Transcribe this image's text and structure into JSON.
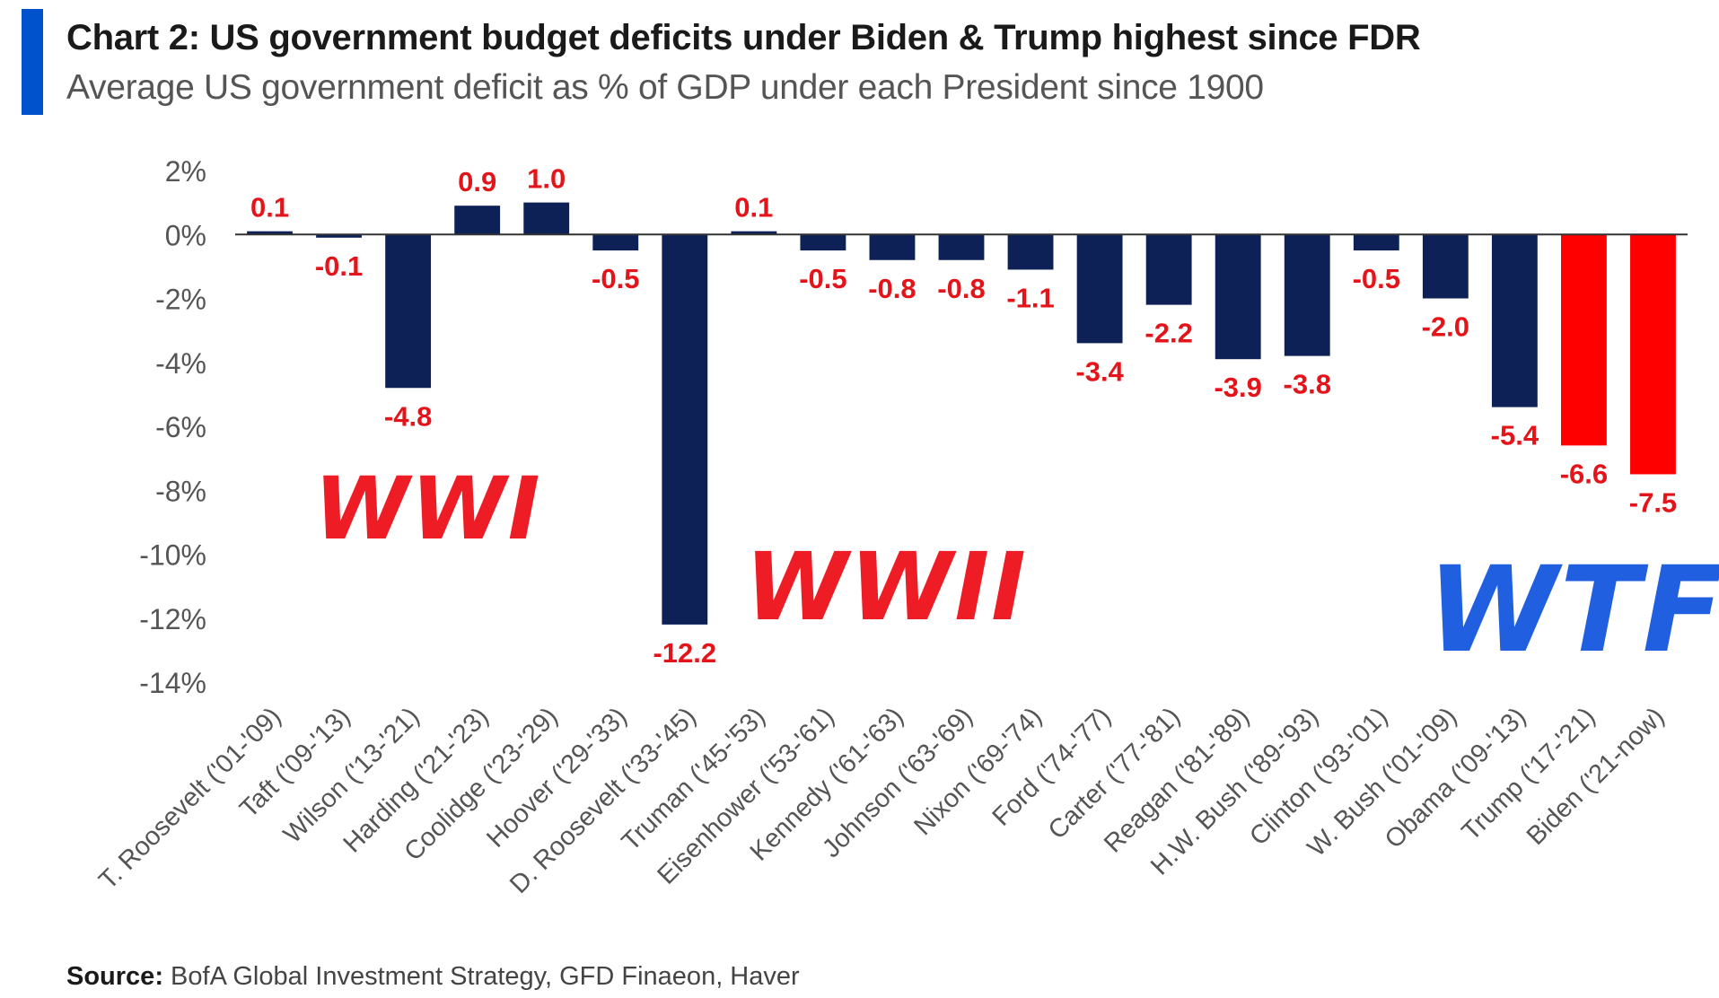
{
  "header": {
    "title": "Chart 2: US government budget deficits under Biden & Trump highest since FDR",
    "subtitle": "Average US government deficit as % of GDP under each President since 1900"
  },
  "source": {
    "label": "Source:",
    "text": "BofA Global Investment Strategy, GFD Finaeon, Haver"
  },
  "colors": {
    "accent": "#0052cc",
    "bar_default": "#0d2157",
    "bar_highlight": "#ff0000",
    "value_label": "#e3151a",
    "annotation_red": "#ee1c25",
    "annotation_blue": "#1f5fe0",
    "axis_text": "#555555"
  },
  "chart_data": {
    "type": "bar",
    "title": "Chart 2: US government budget deficits under Biden & Trump highest since FDR",
    "subtitle": "Average US government deficit as % of GDP under each President since 1900",
    "ylabel": "",
    "xlabel": "",
    "ylim": [
      -14,
      2
    ],
    "yticks": [
      2,
      0,
      -2,
      -4,
      -6,
      -8,
      -10,
      -12,
      -14
    ],
    "ytick_labels": [
      "2%",
      "0%",
      "-2%",
      "-4%",
      "-6%",
      "-8%",
      "-10%",
      "-12%",
      "-14%"
    ],
    "grid": false,
    "categories": [
      "T. Roosevelt ('01-'09)",
      "Taft ('09-'13)",
      "Wilson ('13-'21)",
      "Harding ('21-'23)",
      "Coolidge ('23-'29)",
      "Hoover ('29-'33)",
      "D. Roosevelt ('33-'45)",
      "Truman ('45-'53)",
      "Eisenhower ('53-'61)",
      "Kennedy ('61-'63)",
      "Johnson ('63-'69)",
      "Nixon ('69-'74)",
      "Ford ('74-'77)",
      "Carter ('77-'81)",
      "Reagan ('81-'89)",
      "H.W. Bush ('89-'93)",
      "Clinton ('93-'01)",
      "W. Bush ('01-'09)",
      "Obama ('09-'13)",
      "Trump ('17-'21)",
      "Biden ('21-now)"
    ],
    "values": [
      0.1,
      -0.1,
      -4.8,
      0.9,
      1.0,
      -0.5,
      -12.2,
      0.1,
      -0.5,
      -0.8,
      -0.8,
      -1.1,
      -3.4,
      -2.2,
      -3.9,
      -3.8,
      -0.5,
      -2.0,
      -5.4,
      -6.6,
      -7.5
    ],
    "value_labels": [
      "0.1",
      "-0.1",
      "-4.8",
      "0.9",
      "1.0",
      "-0.5",
      "-12.2",
      "0.1",
      "-0.5",
      "-0.8",
      "-0.8",
      "-1.1",
      "-3.4",
      "-2.2",
      "-3.9",
      "-3.8",
      "-0.5",
      "-2.0",
      "-5.4",
      "-6.6",
      "-7.5"
    ],
    "highlighted": [
      false,
      false,
      false,
      false,
      false,
      false,
      false,
      false,
      false,
      false,
      false,
      false,
      false,
      false,
      false,
      false,
      false,
      false,
      false,
      true,
      true
    ],
    "annotations": [
      {
        "text": "WWI",
        "near": "Wilson ('13-'21)",
        "color": "red"
      },
      {
        "text": "WWII",
        "near": "Truman ('45-'53)",
        "color": "red"
      },
      {
        "text": "WTF",
        "near": "Trump ('17-'21)",
        "color": "blue"
      }
    ]
  }
}
